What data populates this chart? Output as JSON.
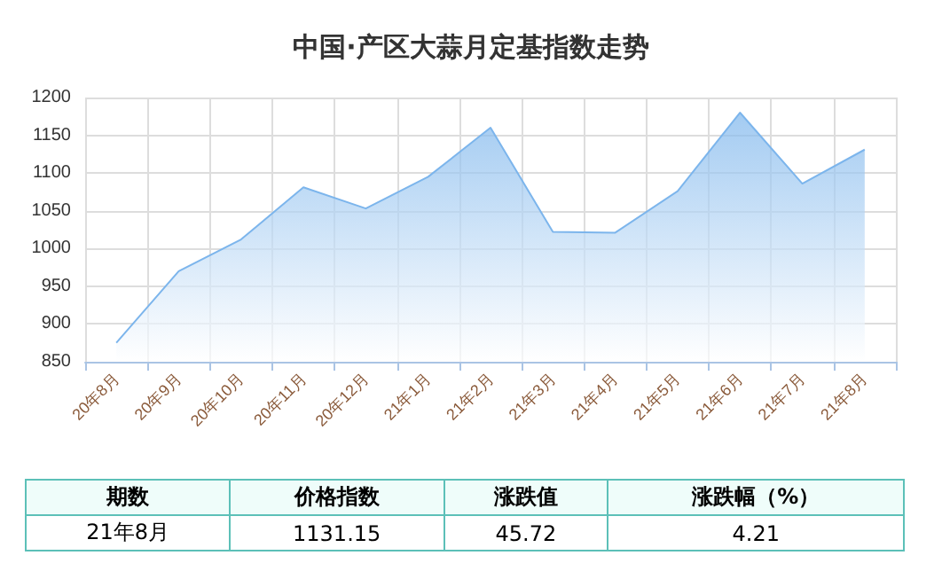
{
  "chart_data": {
    "type": "area",
    "title": "中国·产区大蒜月定基指数走势",
    "categories": [
      "20年8月",
      "20年9月",
      "20年10月",
      "20年11月",
      "20年12月",
      "21年1月",
      "21年2月",
      "21年3月",
      "21年4月",
      "21年5月",
      "21年6月",
      "21年7月",
      "21年8月"
    ],
    "series": [
      {
        "color": "#7cb5ec",
        "values": [
          875,
          970,
          1012,
          1081,
          1053,
          1095,
          1160,
          1022,
          1021,
          1076,
          1180,
          1086,
          1131
        ]
      }
    ],
    "ylim": [
      850,
      1200
    ],
    "yticks": [
      850,
      900,
      950,
      1000,
      1050,
      1100,
      1150,
      1200
    ],
    "grid": true,
    "marker": "none",
    "line_style": "solid",
    "annotations": [
      "期数",
      "价格指数",
      "涨跌值",
      "涨跌幅（%）",
      "21年8月",
      "1131.15",
      "45.72",
      "4.21"
    ]
  }
}
